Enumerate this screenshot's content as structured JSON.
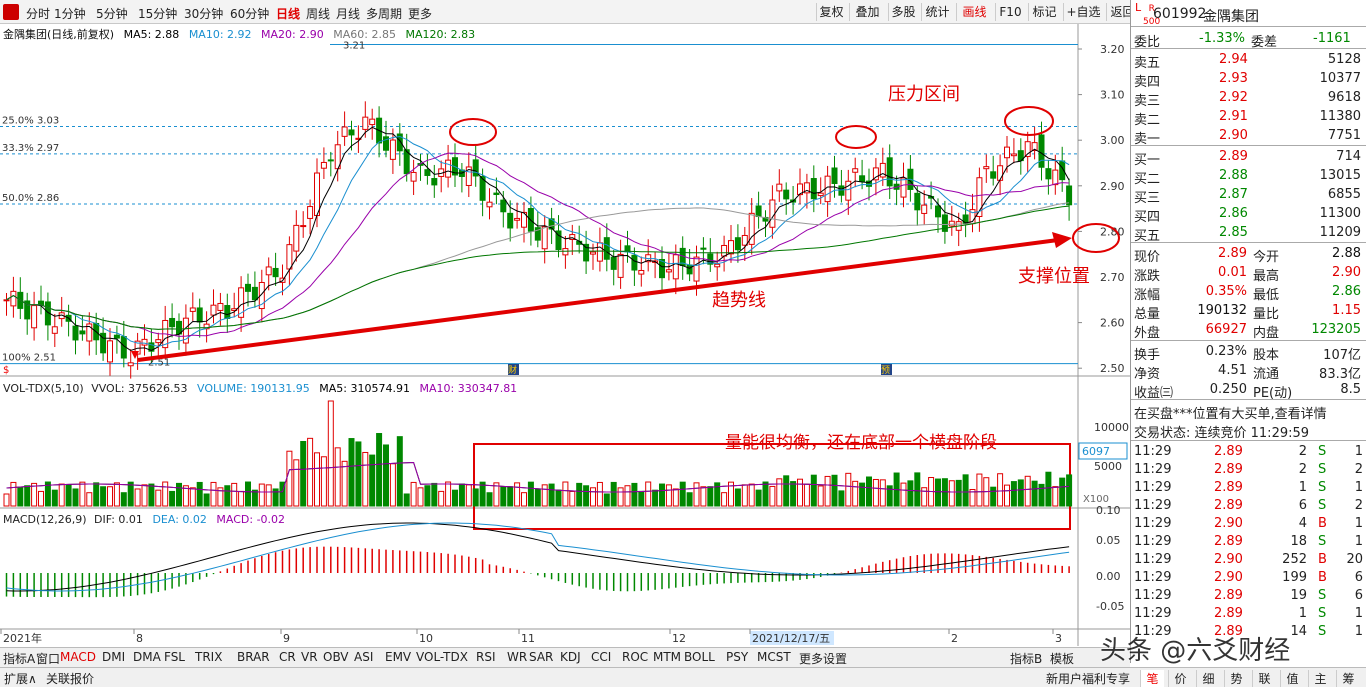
{
  "periods": [
    "分时",
    "1分钟",
    "5分钟",
    "15分钟",
    "30分钟",
    "60分钟",
    "日线",
    "周线",
    "月线",
    "多周期",
    "更多"
  ],
  "active_period": "日线",
  "toolbar": [
    "复权",
    "叠加",
    "多股",
    "统计",
    "画线",
    "F10",
    "标记",
    "+自选",
    "返回"
  ],
  "active_tool": "画线",
  "header": {
    "title": "金隅集团(日线,前复权)",
    "ma5": "MA5: 2.88",
    "ma10": "MA10: 2.92",
    "ma20": "MA20: 2.90",
    "ma60": "MA60: 2.85",
    "ma120": "MA120: 2.83"
  },
  "colors": {
    "up": "#e00000",
    "down": "#008800",
    "ma5": "#000000",
    "ma10": "#1a8fd0",
    "ma20": "#9900aa",
    "ma60": "#999999",
    "ma120": "#007700",
    "fib": "#1a8fd0",
    "annot": "#e00000"
  },
  "price_axis": [
    "3.20",
    "3.10",
    "3.00",
    "2.90",
    "2.80",
    "2.70",
    "2.60",
    "2.50"
  ],
  "fib": [
    {
      "pct": "25.0%",
      "val": "3.03"
    },
    {
      "pct": "33.3%",
      "val": "2.97"
    },
    {
      "pct": "50.0%",
      "val": "2.86"
    },
    {
      "pct": "100%",
      "val": "2.51"
    }
  ],
  "marks": {
    "high": "3.21",
    "low": "2.51",
    "cai1": "财",
    "cai2": "财",
    "yu": "预",
    "s": "$"
  },
  "annotations": {
    "pressure": "压力区间",
    "trend": "趋势线",
    "support": "支撑位置",
    "volume_note": "量能很均衡，还在底部一个横盘阶段"
  },
  "vol": {
    "title": "VOL-TDX(5,10)",
    "vvol": "VVOL: 375626.53",
    "volume": "VOLUME: 190131.95",
    "ma5": "MA5: 310574.91",
    "ma10": "MA10: 330347.81",
    "axis": [
      "10000",
      "5000"
    ],
    "current": "6097",
    "unit": "X100"
  },
  "macd": {
    "title": "MACD(12,26,9)",
    "dif": "DIF: 0.01",
    "dea": "DEA: 0.02",
    "macd": "MACD: -0.02",
    "axis": [
      "0.10",
      "0.05",
      "0.00",
      "-0.05"
    ]
  },
  "date_axis": [
    "2021年",
    "8",
    "9",
    "10",
    "11",
    "12",
    "2021/12/17/五",
    "2",
    "3"
  ],
  "indicators": [
    "指标A",
    "窗口",
    "MACD",
    "DMI",
    "DMA",
    "FSL",
    "TRIX",
    "BRAR",
    "CR",
    "VR",
    "OBV",
    "ASI",
    "EMV",
    "VOL-TDX",
    "RSI",
    "WR",
    "SAR",
    "KDJ",
    "CCI",
    "ROC",
    "MTM",
    "BOLL",
    "PSY",
    "MCST",
    "更多",
    "设置"
  ],
  "active_indicator": "MACD",
  "right_btns": [
    "指标B",
    "模板"
  ],
  "bottom_left": [
    "扩展∧",
    "关联报价"
  ],
  "bottom_right": {
    "promo": "新用户福利专享",
    "tabs": [
      "笔",
      "价",
      "细",
      "势",
      "联",
      "值",
      "主",
      "筹"
    ]
  },
  "watermark": "头条 @六爻财经",
  "quote": {
    "code": "601992",
    "name": "金隅集团",
    "badge_l": "L",
    "badge_r": "R",
    "badge_500": "500",
    "weibi": {
      "l": "委比",
      "v": "-1.33%",
      "l2": "委差",
      "v2": "-1161"
    },
    "sells": [
      {
        "l": "卖五",
        "p": "2.94",
        "v": "5128"
      },
      {
        "l": "卖四",
        "p": "2.93",
        "v": "10377"
      },
      {
        "l": "卖三",
        "p": "2.92",
        "v": "9618"
      },
      {
        "l": "卖二",
        "p": "2.91",
        "v": "11380"
      },
      {
        "l": "卖一",
        "p": "2.90",
        "v": "7751"
      }
    ],
    "buys": [
      {
        "l": "买一",
        "p": "2.89",
        "v": "714"
      },
      {
        "l": "买二",
        "p": "2.88",
        "v": "13015"
      },
      {
        "l": "买三",
        "p": "2.87",
        "v": "6855"
      },
      {
        "l": "买四",
        "p": "2.86",
        "v": "11300"
      },
      {
        "l": "买五",
        "p": "2.85",
        "v": "11209"
      }
    ],
    "stats": [
      {
        "l": "现价",
        "v": "2.89",
        "c": "r",
        "l2": "今开",
        "v2": "2.88",
        "c2": "k"
      },
      {
        "l": "涨跌",
        "v": "0.01",
        "c": "r",
        "l2": "最高",
        "v2": "2.90",
        "c2": "r"
      },
      {
        "l": "涨幅",
        "v": "0.35%",
        "c": "r",
        "l2": "最低",
        "v2": "2.86",
        "c2": "g"
      },
      {
        "l": "总量",
        "v": "190132",
        "c": "k",
        "l2": "量比",
        "v2": "1.15",
        "c2": "r"
      },
      {
        "l": "外盘",
        "v": "66927",
        "c": "r",
        "l2": "内盘",
        "v2": "123205",
        "c2": "g"
      }
    ],
    "stats2": [
      {
        "l": "换手",
        "v": "0.23%",
        "l2": "股本",
        "v2": "107亿"
      },
      {
        "l": "净资",
        "v": "4.51",
        "l2": "流通",
        "v2": "83.3亿"
      },
      {
        "l": "收益㈢",
        "v": "0.250",
        "l2": "PE(动)",
        "v2": "8.5"
      }
    ],
    "notice": "在买盘***位置有大买单,查看详情",
    "status": "交易状态: 连续竞价 11:29:59",
    "ticks": [
      {
        "t": "11:29",
        "p": "2.89",
        "v": "2",
        "s": "S",
        "n": "1"
      },
      {
        "t": "11:29",
        "p": "2.89",
        "v": "2",
        "s": "S",
        "n": "2"
      },
      {
        "t": "11:29",
        "p": "2.89",
        "v": "1",
        "s": "S",
        "n": "1"
      },
      {
        "t": "11:29",
        "p": "2.89",
        "v": "6",
        "s": "S",
        "n": "2"
      },
      {
        "t": "11:29",
        "p": "2.90",
        "v": "4",
        "s": "B",
        "n": "1"
      },
      {
        "t": "11:29",
        "p": "2.89",
        "v": "18",
        "s": "S",
        "n": "1"
      },
      {
        "t": "11:29",
        "p": "2.90",
        "v": "252",
        "s": "B",
        "n": "20"
      },
      {
        "t": "11:29",
        "p": "2.90",
        "v": "199",
        "s": "B",
        "n": "6"
      },
      {
        "t": "11:29",
        "p": "2.89",
        "v": "19",
        "s": "S",
        "n": "6"
      },
      {
        "t": "11:29",
        "p": "2.89",
        "v": "1",
        "s": "S",
        "n": "1"
      },
      {
        "t": "11:29",
        "p": "2.89",
        "v": "14",
        "s": "S",
        "n": "1"
      }
    ]
  }
}
